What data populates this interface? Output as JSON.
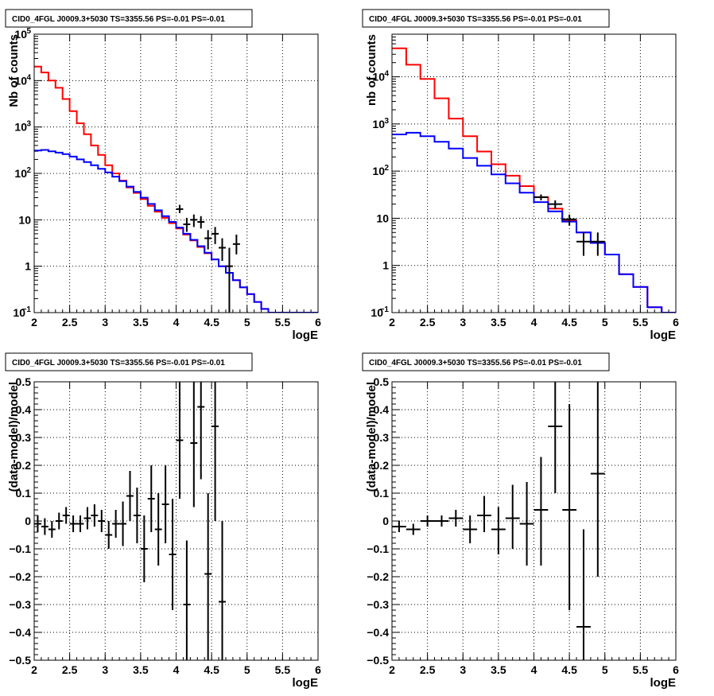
{
  "chart_data": [
    {
      "id": "p1",
      "type": "histogram",
      "title": "CID0_4FGL J0009.3+5030 TS=3355.56 PS=-0.01 PS=-0.01",
      "xlabel": "logE",
      "ylabel": "Nb of counts",
      "xlim": [
        2,
        6
      ],
      "ylim": [
        0.1,
        100000
      ],
      "logy": true,
      "grid": true,
      "xticks": [
        "2",
        "2.5",
        "3",
        "3.5",
        "4",
        "4.5",
        "5",
        "5.5",
        "6"
      ],
      "yticks": [
        {
          "v": 0.1,
          "b": "10",
          "e": "−1"
        },
        {
          "v": 1,
          "b": "1",
          "e": ""
        },
        {
          "v": 10,
          "b": "10",
          "e": ""
        },
        {
          "v": 100,
          "b": "10",
          "e": "2"
        },
        {
          "v": 1000,
          "b": "10",
          "e": "3"
        },
        {
          "v": 10000,
          "b": "10",
          "e": "4"
        },
        {
          "v": 100000,
          "b": "10",
          "e": "5"
        }
      ],
      "series": [
        {
          "color": "#ff0000",
          "kind": "step",
          "x0": 2.0,
          "dx": 0.1,
          "values": [
            20000,
            15000,
            10000,
            7000,
            4000,
            2200,
            1200,
            700,
            400,
            250,
            150,
            100,
            70,
            50,
            38,
            28,
            20,
            15,
            11,
            8.5,
            6.5,
            4.8,
            3.6,
            2.6,
            1.9,
            1.4,
            1.0,
            0.72,
            0.5,
            0.35,
            0.25,
            0.17,
            0.12,
            0.1,
            0.1,
            0.1,
            0.1,
            0.1,
            0.1,
            0.1
          ]
        },
        {
          "color": "#0000ff",
          "kind": "step",
          "x0": 2.0,
          "dx": 0.1,
          "values": [
            310,
            320,
            300,
            280,
            260,
            230,
            200,
            175,
            150,
            125,
            105,
            85,
            68,
            52,
            40,
            30,
            22,
            16,
            12,
            9,
            6.8,
            5,
            3.7,
            2.7,
            1.95,
            1.4,
            1.0,
            0.72,
            0.5,
            0.35,
            0.25,
            0.17,
            0.12,
            0.1,
            0.1,
            0.1,
            0.1,
            0.1,
            0.1,
            0.1
          ]
        },
        {
          "color": "#000000",
          "kind": "errors",
          "halfw": 0.05,
          "points": [
            [
              4.05,
              17,
              14,
              21
            ],
            [
              4.15,
              8,
              5.5,
              11
            ],
            [
              4.25,
              10,
              7,
              13
            ],
            [
              4.35,
              9,
              6.5,
              12
            ],
            [
              4.45,
              4,
              2.3,
              6
            ],
            [
              4.55,
              5,
              3,
              7
            ],
            [
              4.65,
              2.5,
              1.3,
              4
            ],
            [
              4.75,
              1,
              0.1,
              2.5
            ],
            [
              4.85,
              3,
              1.8,
              4.8
            ]
          ]
        }
      ]
    },
    {
      "id": "p2",
      "type": "histogram",
      "title": "CID0_4FGL J0009.3+5030 TS=3355.56 PS=-0.01 PS=-0.01",
      "xlabel": "logE",
      "ylabel": "nb of counts",
      "xlim": [
        2,
        6
      ],
      "ylim": [
        0.1,
        80000
      ],
      "logy": true,
      "grid": true,
      "xticks": [
        "2",
        "2.5",
        "3",
        "3.5",
        "4",
        "4.5",
        "5",
        "5.5",
        "6"
      ],
      "yticks": [
        {
          "v": 0.1,
          "b": "10",
          "e": "−1"
        },
        {
          "v": 1,
          "b": "1",
          "e": ""
        },
        {
          "v": 10,
          "b": "10",
          "e": ""
        },
        {
          "v": 100,
          "b": "10",
          "e": "2"
        },
        {
          "v": 1000,
          "b": "10",
          "e": "3"
        },
        {
          "v": 10000,
          "b": "10",
          "e": "4"
        }
      ],
      "series": [
        {
          "color": "#ff0000",
          "kind": "step",
          "x0": 2.0,
          "dx": 0.2,
          "values": [
            40000,
            18000,
            9000,
            3500,
            1300,
            550,
            260,
            140,
            80,
            48,
            28,
            16,
            9,
            5,
            3,
            1.7,
            0.65,
            0.35,
            0.13,
            0.1
          ]
        },
        {
          "color": "#0000ff",
          "kind": "step",
          "x0": 2.0,
          "dx": 0.2,
          "values": [
            600,
            650,
            550,
            420,
            300,
            190,
            130,
            85,
            55,
            35,
            22,
            14,
            8.5,
            5,
            3,
            1.7,
            0.65,
            0.35,
            0.13,
            0.1
          ]
        },
        {
          "color": "#000000",
          "kind": "errors",
          "halfw": 0.1,
          "points": [
            [
              4.1,
              28,
              24,
              32
            ],
            [
              4.3,
              20,
              16,
              24
            ],
            [
              4.5,
              9.5,
              7,
              12
            ],
            [
              4.7,
              3.2,
              1.6,
              5
            ],
            [
              4.9,
              3.2,
              1.6,
              5
            ]
          ]
        }
      ]
    },
    {
      "id": "p3",
      "type": "scatter",
      "title": "CID0_4FGL J0009.3+5030 TS=3355.56 PS=-0.01 PS=-0.01",
      "xlabel": "logE",
      "ylabel": "(data-model)/model",
      "xlim": [
        2,
        6
      ],
      "ylim": [
        -0.5,
        0.5
      ],
      "logy": false,
      "grid": true,
      "xticks": [
        "2",
        "2.5",
        "3",
        "3.5",
        "4",
        "4.5",
        "5",
        "5.5",
        "6"
      ],
      "yticks": [
        {
          "v": -0.5,
          "b": "−0.5",
          "e": ""
        },
        {
          "v": -0.4,
          "b": "−0.4",
          "e": ""
        },
        {
          "v": -0.3,
          "b": "−0.3",
          "e": ""
        },
        {
          "v": -0.2,
          "b": "−0.2",
          "e": ""
        },
        {
          "v": -0.1,
          "b": "−0.1",
          "e": ""
        },
        {
          "v": 0,
          "b": "0",
          "e": ""
        },
        {
          "v": 0.1,
          "b": "0.1",
          "e": ""
        },
        {
          "v": 0.2,
          "b": "0.2",
          "e": ""
        },
        {
          "v": 0.3,
          "b": "0.3",
          "e": ""
        },
        {
          "v": 0.4,
          "b": "0.4",
          "e": ""
        },
        {
          "v": 0.5,
          "b": "0.5",
          "e": ""
        }
      ],
      "series": [
        {
          "color": "#000000",
          "kind": "errors",
          "halfw": 0.05,
          "points": [
            [
              2.05,
              -0.01,
              -0.04,
              0.02
            ],
            [
              2.15,
              -0.02,
              -0.05,
              0.01
            ],
            [
              2.25,
              -0.03,
              -0.06,
              0.0
            ],
            [
              2.35,
              0.0,
              -0.03,
              0.03
            ],
            [
              2.45,
              0.02,
              -0.01,
              0.05
            ],
            [
              2.55,
              -0.01,
              -0.04,
              0.02
            ],
            [
              2.65,
              -0.01,
              -0.04,
              0.02
            ],
            [
              2.75,
              0.01,
              -0.03,
              0.05
            ],
            [
              2.85,
              0.02,
              -0.02,
              0.06
            ],
            [
              2.95,
              0.0,
              -0.04,
              0.04
            ],
            [
              3.05,
              -0.05,
              -0.1,
              0.0
            ],
            [
              3.15,
              -0.01,
              -0.06,
              0.04
            ],
            [
              3.25,
              -0.01,
              -0.09,
              0.07
            ],
            [
              3.35,
              0.09,
              0.0,
              0.18
            ],
            [
              3.45,
              0.02,
              -0.08,
              0.12
            ],
            [
              3.55,
              -0.1,
              -0.22,
              0.02
            ],
            [
              3.65,
              0.08,
              -0.04,
              0.2
            ],
            [
              3.75,
              -0.03,
              -0.16,
              0.1
            ],
            [
              3.85,
              0.06,
              -0.08,
              0.2
            ],
            [
              3.95,
              -0.12,
              -0.32,
              0.08
            ],
            [
              4.05,
              0.29,
              0.08,
              0.5
            ],
            [
              4.15,
              -0.3,
              -0.55,
              -0.07
            ],
            [
              4.25,
              0.28,
              0.05,
              0.5
            ],
            [
              4.35,
              0.41,
              0.15,
              0.5
            ],
            [
              4.45,
              -0.19,
              -0.55,
              0.1
            ],
            [
              4.55,
              0.34,
              0.0,
              0.5
            ],
            [
              4.65,
              -0.29,
              -0.55,
              0.0
            ]
          ]
        }
      ]
    },
    {
      "id": "p4",
      "type": "scatter",
      "title": "CID0_4FGL J0009.3+5030 TS=3355.56 PS=-0.01 PS=-0.01",
      "xlabel": "logE",
      "ylabel": "(data-model)/model",
      "xlim": [
        2,
        6
      ],
      "ylim": [
        -0.5,
        0.5
      ],
      "logy": false,
      "grid": true,
      "xticks": [
        "2",
        "2.5",
        "3",
        "3.5",
        "4",
        "4.5",
        "5",
        "5.5",
        "6"
      ],
      "yticks": [
        {
          "v": -0.5,
          "b": "−0.5",
          "e": ""
        },
        {
          "v": -0.4,
          "b": "−0.4",
          "e": ""
        },
        {
          "v": -0.3,
          "b": "−0.3",
          "e": ""
        },
        {
          "v": -0.2,
          "b": "−0.2",
          "e": ""
        },
        {
          "v": -0.1,
          "b": "−0.1",
          "e": ""
        },
        {
          "v": 0,
          "b": "0",
          "e": ""
        },
        {
          "v": 0.1,
          "b": "0.1",
          "e": ""
        },
        {
          "v": 0.2,
          "b": "0.2",
          "e": ""
        },
        {
          "v": 0.3,
          "b": "0.3",
          "e": ""
        },
        {
          "v": 0.4,
          "b": "0.4",
          "e": ""
        },
        {
          "v": 0.5,
          "b": "0.5",
          "e": ""
        }
      ],
      "series": [
        {
          "color": "#000000",
          "kind": "errors",
          "halfw": 0.1,
          "points": [
            [
              2.1,
              -0.02,
              -0.04,
              0.0
            ],
            [
              2.3,
              -0.03,
              -0.05,
              -0.01
            ],
            [
              2.5,
              0.0,
              -0.02,
              0.02
            ],
            [
              2.7,
              0.0,
              -0.02,
              0.02
            ],
            [
              2.9,
              0.01,
              -0.02,
              0.04
            ],
            [
              3.1,
              -0.03,
              -0.08,
              0.02
            ],
            [
              3.3,
              0.02,
              -0.04,
              0.09
            ],
            [
              3.5,
              -0.03,
              -0.12,
              0.05
            ],
            [
              3.7,
              0.01,
              -0.1,
              0.13
            ],
            [
              3.9,
              -0.01,
              -0.16,
              0.14
            ],
            [
              4.1,
              0.04,
              -0.16,
              0.23
            ],
            [
              4.3,
              0.34,
              0.1,
              0.5
            ],
            [
              4.5,
              0.04,
              -0.32,
              0.42
            ],
            [
              4.7,
              -0.38,
              -0.55,
              -0.03
            ],
            [
              4.9,
              0.17,
              -0.2,
              0.55
            ]
          ]
        }
      ]
    }
  ]
}
